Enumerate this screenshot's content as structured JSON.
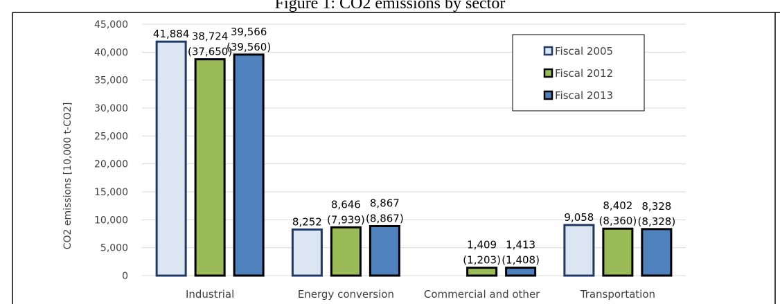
{
  "figure_title": "Figure 1: CO2 emissions by sector",
  "chart_data": {
    "type": "bar",
    "title": "Figure 1: CO2 emissions by sector",
    "ylabel": "CO2 emissions [10,000 t-CO2]",
    "xlabel": "",
    "ylim": [
      0,
      45000
    ],
    "yticks": [
      0,
      5000,
      10000,
      15000,
      20000,
      25000,
      30000,
      35000,
      40000,
      45000
    ],
    "ytick_labels": [
      "0",
      "5,000",
      "10,000",
      "15,000",
      "20,000",
      "25,000",
      "30,000",
      "35,000",
      "40,000",
      "45,000"
    ],
    "grid": true,
    "legend_position": "top-right",
    "categories": [
      "Industrial",
      "Energy conversion",
      "Commercial and other",
      "Transportation"
    ],
    "series": [
      {
        "name": "Fiscal 2005",
        "color": "#dce6f2",
        "values": [
          41884,
          8252,
          null,
          9058
        ],
        "labels": [
          "41,884",
          "8,252",
          "",
          "9,058"
        ],
        "sublabels": [
          "",
          "",
          "",
          ""
        ]
      },
      {
        "name": "Fiscal 2012",
        "color": "#9bbb59",
        "values": [
          38724,
          8646,
          1409,
          8402
        ],
        "labels": [
          "38,724",
          "8,646",
          "1,409",
          "8,402"
        ],
        "sublabels": [
          "(37,650)",
          "(7,939)",
          "(1,203)",
          "(8,360)"
        ]
      },
      {
        "name": "Fiscal 2013",
        "color": "#4f81bd",
        "values": [
          39566,
          8867,
          1413,
          8328
        ],
        "labels": [
          "39,566",
          "8,867",
          "1,413",
          "8,328"
        ],
        "sublabels": [
          "(39,560)",
          "(8,867)",
          "(1,408)",
          "(8,328)"
        ]
      }
    ],
    "bar_outline_color": "#000000",
    "fiscal2005_outline_color": "#1f3864"
  }
}
